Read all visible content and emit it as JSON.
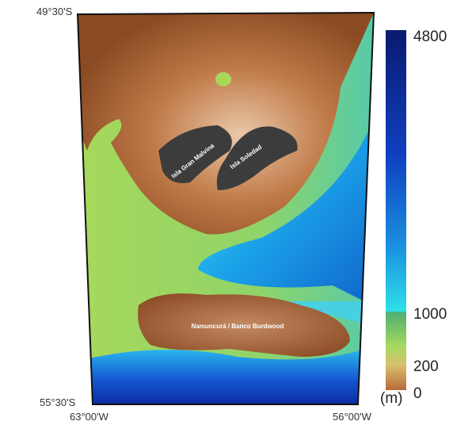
{
  "map": {
    "corners": {
      "top_left": "49°30'S",
      "bottom_left": "55°30'S",
      "left_lon": "63°00'W",
      "right_lon": "56°00'W"
    },
    "places": [
      "Isla Gran Malvina",
      "Isla Soledad",
      "Namuncurá / Banco Burdwood"
    ],
    "colorbar": {
      "unit": "(m)",
      "ticks": [
        4800,
        1000,
        200,
        0
      ]
    }
  }
}
